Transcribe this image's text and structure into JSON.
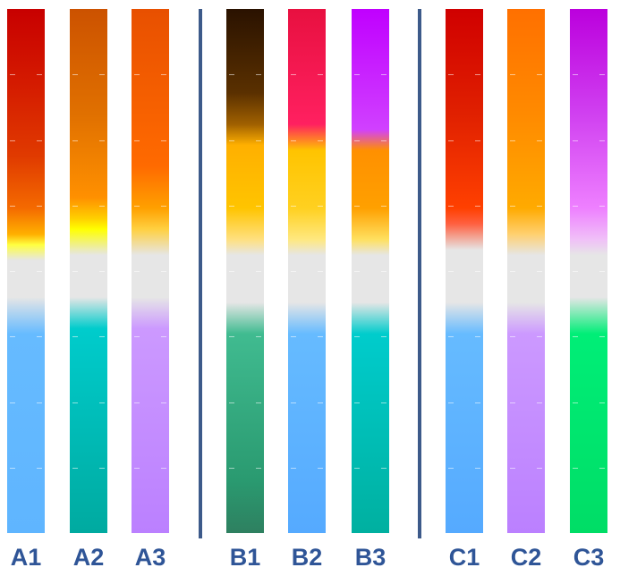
{
  "colors": {
    "divider": "#3d5a8a",
    "label": "#2f5597"
  },
  "bars": [
    {
      "id": "A1",
      "label": "A1",
      "stops": [
        [
          "#c80000",
          0
        ],
        [
          "#d41a00",
          14
        ],
        [
          "#e03a00",
          28
        ],
        [
          "#f46a00",
          38
        ],
        [
          "#ffb000",
          43
        ],
        [
          "#ffff40",
          45
        ],
        [
          "#e6e6e6",
          48
        ],
        [
          "#e6e6e6",
          55
        ],
        [
          "#66bbff",
          62
        ],
        [
          "#5fb5ff",
          100
        ]
      ]
    },
    {
      "id": "A2",
      "label": "A2",
      "stops": [
        [
          "#cc5200",
          0
        ],
        [
          "#e07000",
          20
        ],
        [
          "#ff9000",
          36
        ],
        [
          "#ffd000",
          40
        ],
        [
          "#ffff00",
          42
        ],
        [
          "#e6e6e6",
          47
        ],
        [
          "#e6e6e6",
          55
        ],
        [
          "#00cccc",
          61
        ],
        [
          "#00aaa0",
          100
        ]
      ]
    },
    {
      "id": "A3",
      "label": "A3",
      "stops": [
        [
          "#e85000",
          0
        ],
        [
          "#ff6a00",
          30
        ],
        [
          "#ffa000",
          38
        ],
        [
          "#ffd040",
          42
        ],
        [
          "#e6e6e6",
          47
        ],
        [
          "#e6e6e6",
          55
        ],
        [
          "#cc99ff",
          61
        ],
        [
          "#bb80ff",
          100
        ]
      ]
    },
    {
      "id": "B1",
      "label": "B1",
      "stops": [
        [
          "#2a1200",
          0
        ],
        [
          "#5a3000",
          16
        ],
        [
          "#a06000",
          22
        ],
        [
          "#ffb000",
          26
        ],
        [
          "#ffc400",
          38
        ],
        [
          "#ffe080",
          44
        ],
        [
          "#e6e6e6",
          47
        ],
        [
          "#e6e6e6",
          56
        ],
        [
          "#40bb90",
          62
        ],
        [
          "#2a9a70",
          90
        ],
        [
          "#2e8060",
          100
        ]
      ]
    },
    {
      "id": "B2",
      "label": "B2",
      "stops": [
        [
          "#e81040",
          0
        ],
        [
          "#ff2060",
          22
        ],
        [
          "#ffc400",
          27
        ],
        [
          "#ffd020",
          38
        ],
        [
          "#ffe880",
          44
        ],
        [
          "#e6e6e6",
          47
        ],
        [
          "#e6e6e6",
          56
        ],
        [
          "#66bbff",
          62
        ],
        [
          "#55aaff",
          100
        ]
      ]
    },
    {
      "id": "B3",
      "label": "B3",
      "stops": [
        [
          "#c000ff",
          0
        ],
        [
          "#d040ff",
          23
        ],
        [
          "#ff9000",
          27
        ],
        [
          "#ffa000",
          38
        ],
        [
          "#ffe060",
          44
        ],
        [
          "#e6e6e6",
          47
        ],
        [
          "#e6e6e6",
          56
        ],
        [
          "#00cccc",
          62
        ],
        [
          "#00b0a0",
          100
        ]
      ]
    },
    {
      "id": "C1",
      "label": "C1",
      "stops": [
        [
          "#d00000",
          0
        ],
        [
          "#e02000",
          20
        ],
        [
          "#ff4000",
          38
        ],
        [
          "#ff6040",
          41
        ],
        [
          "#e6e6e6",
          46
        ],
        [
          "#e6e6e6",
          56
        ],
        [
          "#66bbff",
          62
        ],
        [
          "#55aaff",
          100
        ]
      ]
    },
    {
      "id": "C2",
      "label": "C2",
      "stops": [
        [
          "#ff7000",
          0
        ],
        [
          "#ff8a00",
          20
        ],
        [
          "#ffaa00",
          38
        ],
        [
          "#ffd070",
          43
        ],
        [
          "#e6e6e6",
          47
        ],
        [
          "#e6e6e6",
          56
        ],
        [
          "#cc99ff",
          62
        ],
        [
          "#bb80ff",
          100
        ]
      ]
    },
    {
      "id": "C3",
      "label": "C3",
      "stops": [
        [
          "#bb00dd",
          0
        ],
        [
          "#d040f0",
          20
        ],
        [
          "#ee80ff",
          38
        ],
        [
          "#f0c0f8",
          44
        ],
        [
          "#e6e6e6",
          47
        ],
        [
          "#e6e6e6",
          55
        ],
        [
          "#00ee77",
          62
        ],
        [
          "#00dd66",
          100
        ]
      ]
    }
  ]
}
